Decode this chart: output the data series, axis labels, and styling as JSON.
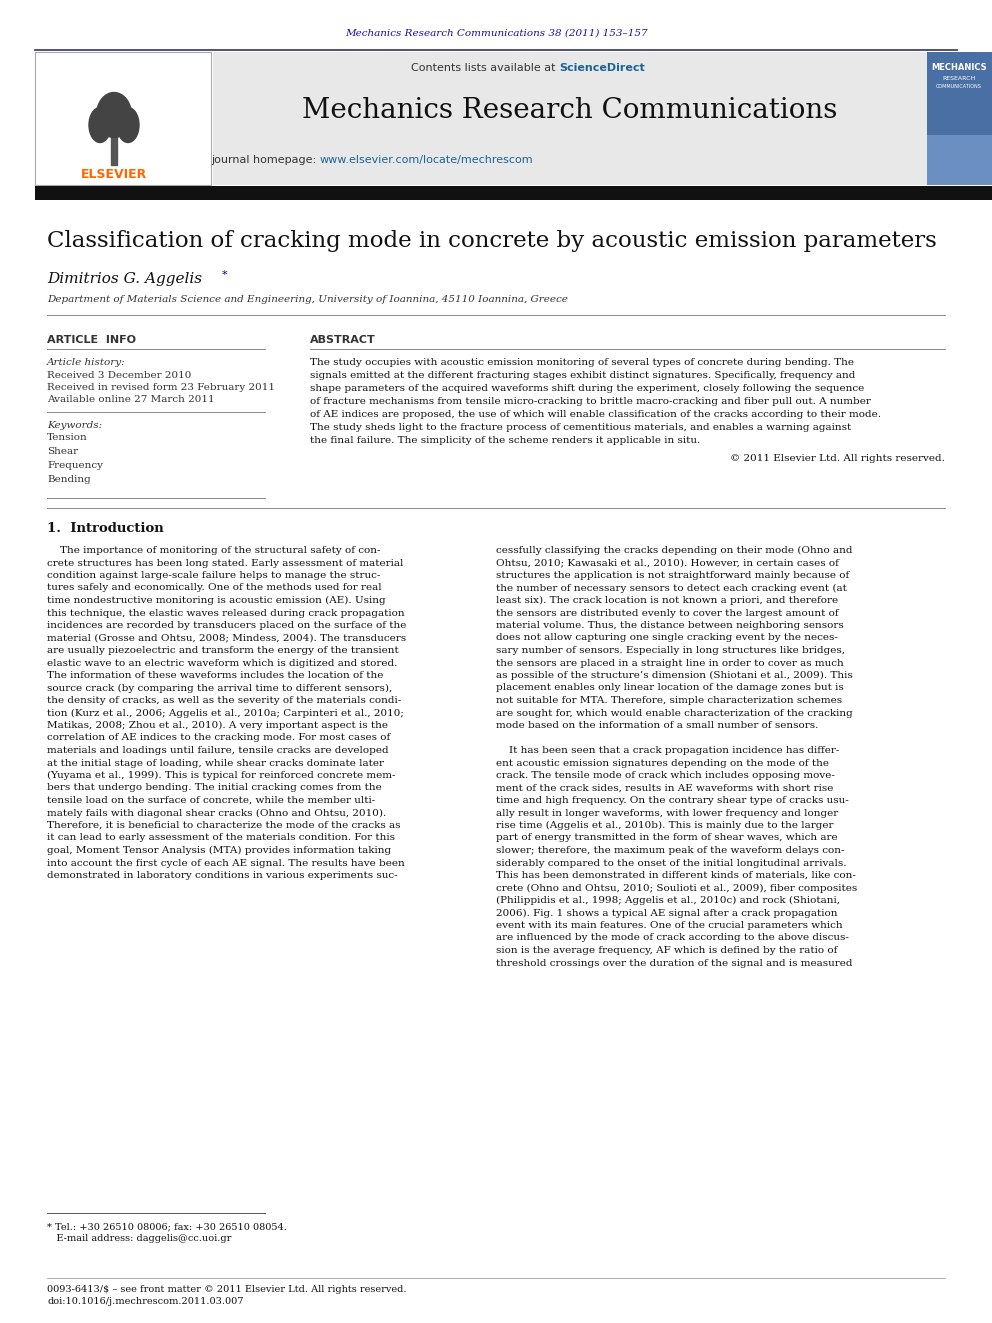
{
  "page_width": 9.92,
  "page_height": 13.23,
  "bg_color": "#ffffff",
  "journal_ref": "Mechanics Research Communications 38 (2011) 153–157",
  "journal_ref_color": "#1a0dab",
  "header_bg": "#e8e8e8",
  "header_sciencedirect_color": "#1a6496",
  "journal_title": "Mechanics Research Communications",
  "journal_url_color": "#1a6496",
  "article_title": "Classification of cracking mode in concrete by acoustic emission parameters",
  "affiliation": "Department of Materials Science and Engineering, University of Ioannina, 45110 Ioannina, Greece",
  "article_info_header": "ARTICLE  INFO",
  "abstract_header": "ABSTRACT",
  "received": "Received 3 December 2010",
  "received_revised": "Received in revised form 23 February 2011",
  "available_online": "Available online 27 March 2011",
  "keywords": [
    "Tension",
    "Shear",
    "Frequency",
    "Bending"
  ],
  "copyright": "© 2011 Elsevier Ltd. All rights reserved.",
  "intro_header": "1.  Introduction",
  "link_color": "#1a6496",
  "abstract_lines": [
    "The study occupies with acoustic emission monitoring of several types of concrete during bending. The",
    "signals emitted at the different fracturing stages exhibit distinct signatures. Specifically, frequency and",
    "shape parameters of the acquired waveforms shift during the experiment, closely following the sequence",
    "of fracture mechanisms from tensile micro-cracking to brittle macro-cracking and fiber pull out. A number",
    "of AE indices are proposed, the use of which will enable classification of the cracks according to their mode.",
    "The study sheds light to the fracture process of cementitious materials, and enables a warning against",
    "the final failure. The simplicity of the scheme renders it applicable in situ."
  ],
  "col1_lines": [
    "    The importance of monitoring of the structural safety of con-",
    "crete structures has been long stated. Early assessment of material",
    "condition against large-scale failure helps to manage the struc-",
    "tures safely and economically. One of the methods used for real",
    "time nondestructive monitoring is acoustic emission (AE). Using",
    "this technique, the elastic waves released during crack propagation",
    "incidences are recorded by transducers placed on the surface of the",
    "material (Grosse and Ohtsu, 2008; Mindess, 2004). The transducers",
    "are usually piezoelectric and transform the energy of the transient",
    "elastic wave to an electric waveform which is digitized and stored.",
    "The information of these waveforms includes the location of the",
    "source crack (by comparing the arrival time to different sensors),",
    "the density of cracks, as well as the severity of the materials condi-",
    "tion (Kurz et al., 2006; Aggelis et al., 2010a; Carpinteri et al., 2010;",
    "Matikas, 2008; Zhou et al., 2010). A very important aspect is the",
    "correlation of AE indices to the cracking mode. For most cases of",
    "materials and loadings until failure, tensile cracks are developed",
    "at the initial stage of loading, while shear cracks dominate later",
    "(Yuyama et al., 1999). This is typical for reinforced concrete mem-",
    "bers that undergo bending. The initial cracking comes from the",
    "tensile load on the surface of concrete, while the member ulti-",
    "mately fails with diagonal shear cracks (Ohno and Ohtsu, 2010).",
    "Therefore, it is beneficial to characterize the mode of the cracks as",
    "it can lead to early assessment of the materials condition. For this",
    "goal, Moment Tensor Analysis (MTA) provides information taking",
    "into account the first cycle of each AE signal. The results have been",
    "demonstrated in laboratory conditions in various experiments suc-"
  ],
  "col2_lines": [
    "cessfully classifying the cracks depending on their mode (Ohno and",
    "Ohtsu, 2010; Kawasaki et al., 2010). However, in certain cases of",
    "structures the application is not straightforward mainly because of",
    "the number of necessary sensors to detect each cracking event (at",
    "least six). The crack location is not known a priori, and therefore",
    "the sensors are distributed evenly to cover the largest amount of",
    "material volume. Thus, the distance between neighboring sensors",
    "does not allow capturing one single cracking event by the neces-",
    "sary number of sensors. Especially in long structures like bridges,",
    "the sensors are placed in a straight line in order to cover as much",
    "as possible of the structure’s dimension (Shiotani et al., 2009). This",
    "placement enables only linear location of the damage zones but is",
    "not suitable for MTA. Therefore, simple characterization schemes",
    "are sought for, which would enable characterization of the cracking",
    "mode based on the information of a small number of sensors.",
    "",
    "    It has been seen that a crack propagation incidence has differ-",
    "ent acoustic emission signatures depending on the mode of the",
    "crack. The tensile mode of crack which includes opposing move-",
    "ment of the crack sides, results in AE waveforms with short rise",
    "time and high frequency. On the contrary shear type of cracks usu-",
    "ally result in longer waveforms, with lower frequency and longer",
    "rise time (Aggelis et al., 2010b). This is mainly due to the larger",
    "part of energy transmitted in the form of shear waves, which are",
    "slower; therefore, the maximum peak of the waveform delays con-",
    "siderably compared to the onset of the initial longitudinal arrivals.",
    "This has been demonstrated in different kinds of materials, like con-",
    "crete (Ohno and Ohtsu, 2010; Soulioti et al., 2009), fiber composites",
    "(Philippidis et al., 1998; Aggelis et al., 2010c) and rock (Shiotani,",
    "2006). Fig. 1 shows a typical AE signal after a crack propagation",
    "event with its main features. One of the crucial parameters which",
    "are influenced by the mode of crack according to the above discus-",
    "sion is the average frequency, AF which is defined by the ratio of",
    "threshold crossings over the duration of the signal and is measured"
  ]
}
